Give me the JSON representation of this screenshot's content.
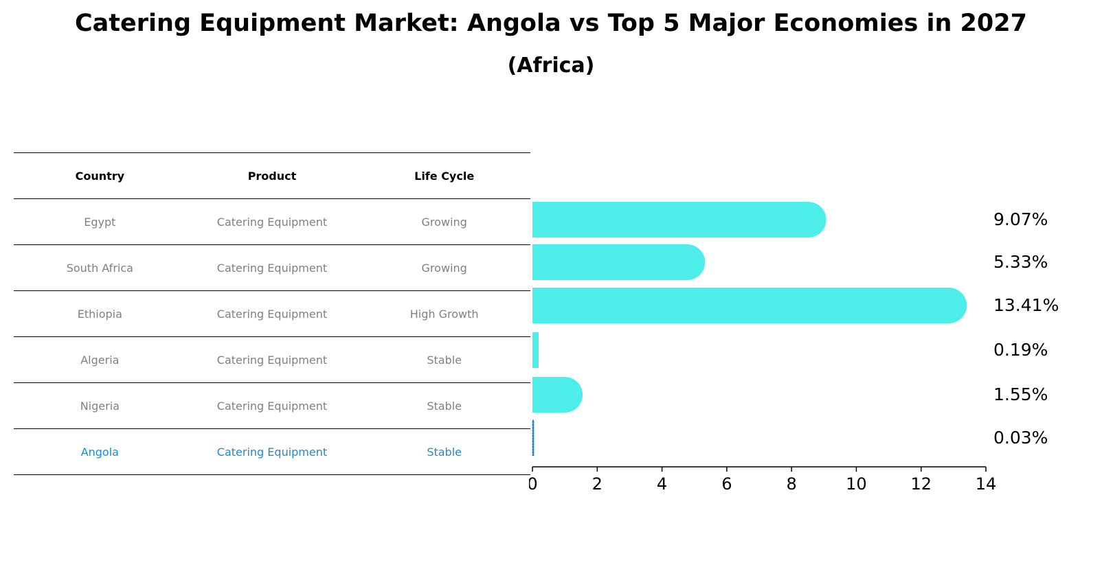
{
  "title": "Catering Equipment Market: Angola vs Top 5 Major Economies in 2027",
  "subtitle": "(Africa)",
  "table": {
    "headers": [
      "Country",
      "Product",
      "Life Cycle"
    ],
    "rows": [
      {
        "country": "Egypt",
        "product": "Catering Equipment",
        "life_cycle": "Growing"
      },
      {
        "country": "South Africa",
        "product": "Catering Equipment",
        "life_cycle": "Growing"
      },
      {
        "country": "Ethiopia",
        "product": "Catering Equipment",
        "life_cycle": "High Growth"
      },
      {
        "country": "Algeria",
        "product": "Catering Equipment",
        "life_cycle": "Stable"
      },
      {
        "country": "Nigeria",
        "product": "Catering Equipment",
        "life_cycle": "Stable"
      },
      {
        "country": "Angola",
        "product": "Catering Equipment",
        "life_cycle": "Stable"
      }
    ]
  },
  "chart_data": {
    "type": "bar",
    "orientation": "horizontal",
    "categories": [
      "Egypt",
      "South Africa",
      "Ethiopia",
      "Algeria",
      "Nigeria",
      "Angola"
    ],
    "values": [
      9.07,
      5.33,
      13.41,
      0.19,
      1.55,
      0.03
    ],
    "value_labels": [
      "9.07%",
      "5.33%",
      "13.41%",
      "0.19%",
      "1.55%",
      "0.03%"
    ],
    "xlim": [
      0,
      14
    ],
    "xticks": [
      0,
      2,
      4,
      6,
      8,
      10,
      12,
      14
    ],
    "bar_color": "#4deeea",
    "highlight_category": "Angola",
    "highlight_color": "#1f8ad0",
    "grid": false
  }
}
